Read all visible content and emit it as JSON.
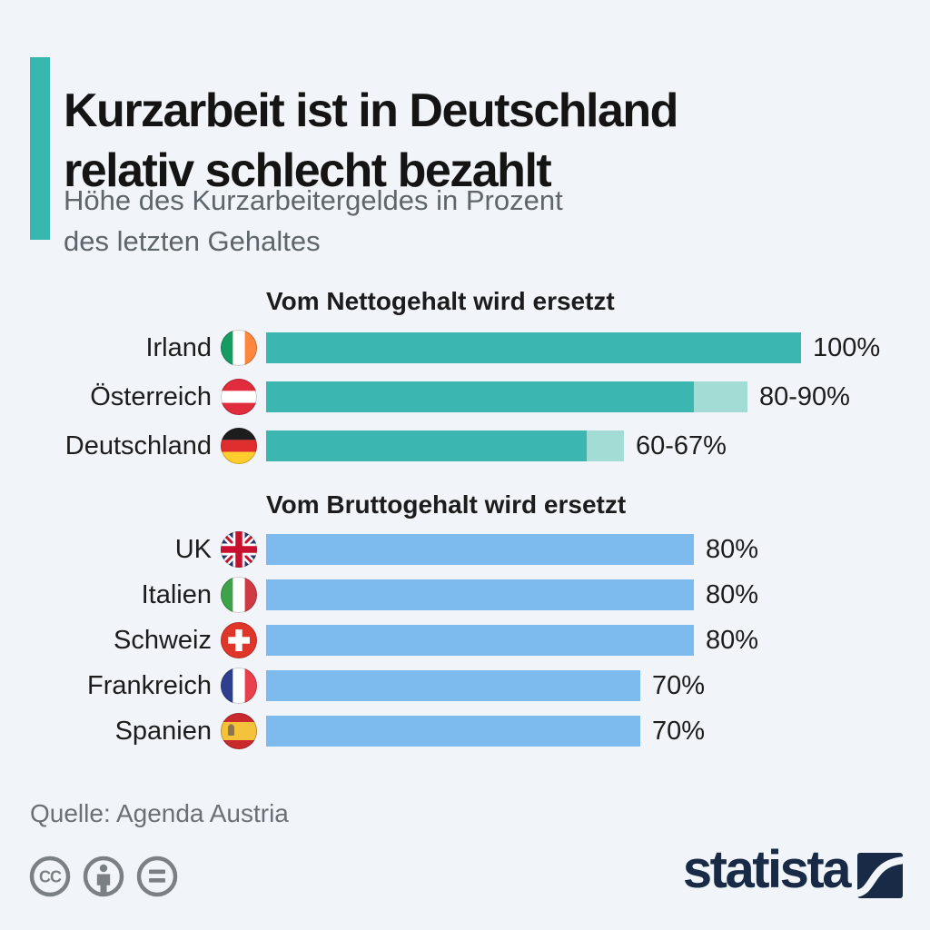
{
  "page": {
    "background": "#F1F5F9",
    "accent_color": "#38B6B0"
  },
  "header": {
    "title_line1": "Kurzarbeit ist in Deutschland",
    "title_line2": "relativ schlecht bezahlt",
    "subtitle_line1": "Höhe des Kurzarbeitergeldes in Prozent",
    "subtitle_line2": "des letzten Gehaltes"
  },
  "chart_data": [
    {
      "type": "bar",
      "orientation": "horizontal",
      "title": "Vom Nettogehalt wird ersetzt",
      "xlim": [
        0,
        100
      ],
      "unit": "%",
      "bar_color": "#3CB6B1",
      "bar_color_range": "#A3DBD5",
      "rows": [
        {
          "label": "Irland",
          "flag": "ireland",
          "value": 100,
          "value_max": 100,
          "value_label": "100%"
        },
        {
          "label": "Österreich",
          "flag": "austria",
          "value": 80,
          "value_max": 90,
          "value_label": "80-90%"
        },
        {
          "label": "Deutschland",
          "flag": "germany",
          "value": 60,
          "value_max": 67,
          "value_label": "60-67%"
        }
      ]
    },
    {
      "type": "bar",
      "orientation": "horizontal",
      "title": "Vom Bruttogehalt wird ersetzt",
      "xlim": [
        0,
        100
      ],
      "unit": "%",
      "bar_color": "#7DBAED",
      "bar_color_range": "#7DBAED",
      "rows": [
        {
          "label": "UK",
          "flag": "uk",
          "value": 80,
          "value_max": 80,
          "value_label": "80%"
        },
        {
          "label": "Italien",
          "flag": "italy",
          "value": 80,
          "value_max": 80,
          "value_label": "80%"
        },
        {
          "label": "Schweiz",
          "flag": "switzerland",
          "value": 80,
          "value_max": 80,
          "value_label": "80%"
        },
        {
          "label": "Frankreich",
          "flag": "france",
          "value": 70,
          "value_max": 70,
          "value_label": "70%"
        },
        {
          "label": "Spanien",
          "flag": "spain",
          "value": 70,
          "value_max": 70,
          "value_label": "70%"
        }
      ]
    }
  ],
  "footer": {
    "source": "Quelle: Agenda Austria",
    "license_icons": [
      "cc-icon",
      "attribution-icon",
      "equals-icon"
    ],
    "brand": "statista"
  }
}
